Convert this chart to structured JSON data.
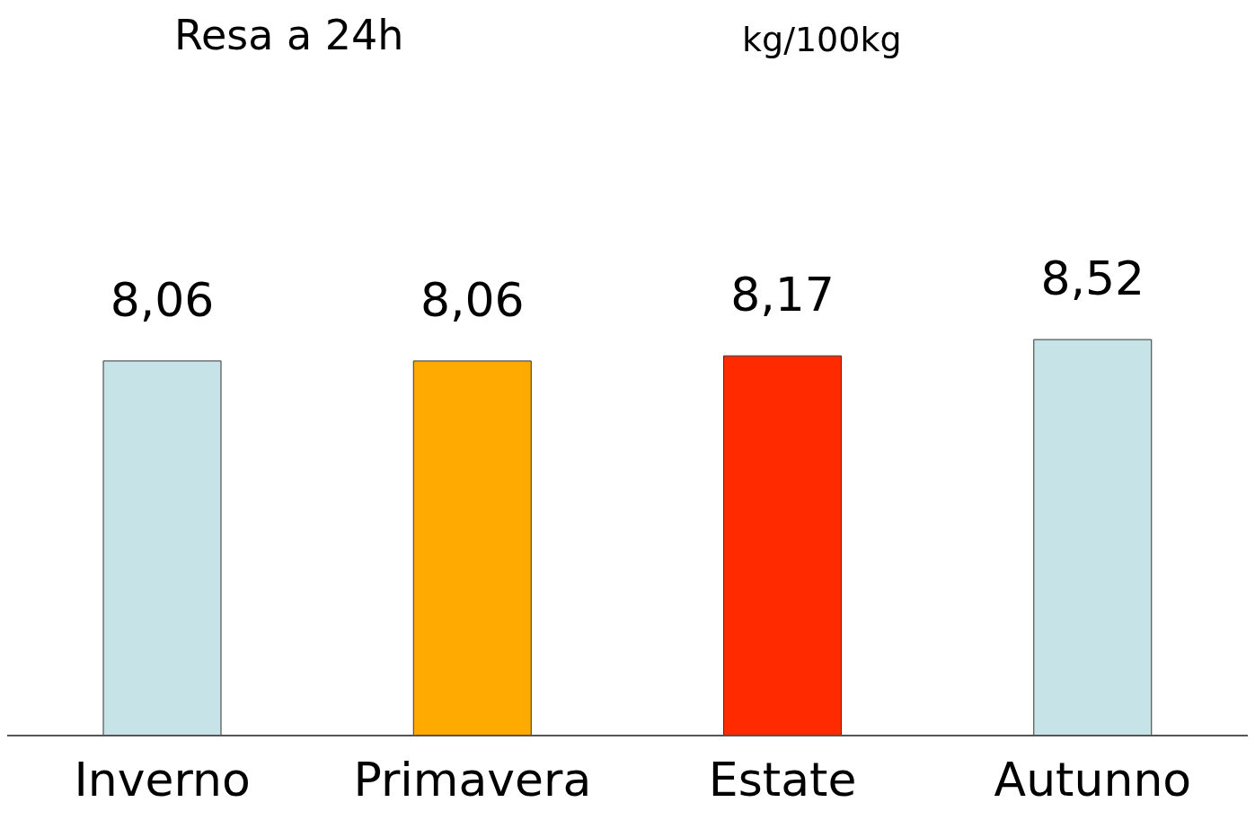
{
  "chart_data": {
    "type": "bar",
    "title": "Resa a 24h",
    "subtitle": "kg/100kg",
    "categories": [
      "Inverno",
      "Primavera",
      "Estate",
      "Autunno"
    ],
    "values": [
      8.06,
      8.06,
      8.17,
      8.52
    ],
    "colors": [
      "#c6e4e8",
      "#ffaa00",
      "#ff2a00",
      "#c6e4e8"
    ],
    "value_labels": [
      "8,06",
      "8,06",
      "8,17",
      "8,52"
    ],
    "tick_labels": "x",
    "grid": false,
    "legend": false
  }
}
